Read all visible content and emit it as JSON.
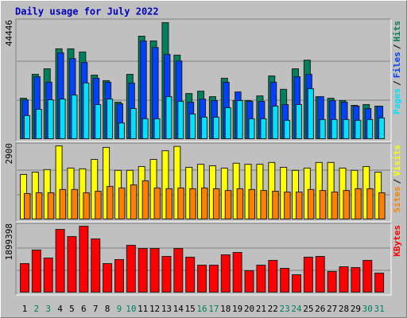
{
  "chart_data": [
    {
      "type": "bar",
      "title": "Daily usage for July 2022",
      "categories": [
        "1",
        "2",
        "3",
        "4",
        "5",
        "6",
        "7",
        "8",
        "9",
        "10",
        "11",
        "12",
        "13",
        "14",
        "15",
        "16",
        "17",
        "18",
        "19",
        "20",
        "21",
        "22",
        "23",
        "24",
        "25",
        "26",
        "27",
        "28",
        "29",
        "30",
        "31"
      ],
      "category_colors": [
        "#000000",
        "#00805c",
        "#00805c",
        "#000000",
        "#000000",
        "#000000",
        "#000000",
        "#000000",
        "#00805c",
        "#00805c",
        "#000000",
        "#000000",
        "#000000",
        "#000000",
        "#000000",
        "#00805c",
        "#00805c",
        "#000000",
        "#000000",
        "#000000",
        "#000000",
        "#000000",
        "#00805c",
        "#00805c",
        "#000000",
        "#000000",
        "#000000",
        "#000000",
        "#000000",
        "#00805c",
        "#00805c"
      ],
      "ylim": [
        0,
        44446
      ],
      "yticks": [
        44446
      ],
      "legend_separator": "/",
      "series": [
        {
          "name": "Hits",
          "color": "#00805c",
          "values": [
            15700,
            24800,
            26900,
            34500,
            34500,
            33300,
            24500,
            22400,
            14200,
            24800,
            39300,
            37500,
            44446,
            32100,
            17500,
            18400,
            16300,
            23300,
            14800,
            14800,
            16600,
            24200,
            19100,
            26900,
            30200,
            16300,
            15700,
            14800,
            13000,
            13300,
            12700
          ]
        },
        {
          "name": "Files",
          "color": "#0040ff",
          "values": [
            15100,
            23900,
            21800,
            33000,
            30800,
            29300,
            23300,
            21800,
            13600,
            21500,
            37500,
            35000,
            32400,
            29900,
            14200,
            15400,
            14800,
            21800,
            18100,
            14500,
            14500,
            21800,
            13300,
            23900,
            24800,
            16300,
            14800,
            14200,
            12700,
            11800,
            12700
          ]
        },
        {
          "name": "Pages",
          "color": "#00e0ff",
          "values": [
            9100,
            11500,
            15100,
            15400,
            16900,
            21500,
            13300,
            15400,
            6300,
            11800,
            7900,
            7900,
            16300,
            14500,
            9700,
            8500,
            8500,
            12100,
            14800,
            7900,
            7900,
            12700,
            7300,
            13300,
            19300,
            7600,
            7600,
            7600,
            7300,
            7600,
            8200
          ]
        }
      ]
    },
    {
      "type": "bar",
      "ylim": [
        0,
        2900
      ],
      "yticks": [
        2900
      ],
      "legend_separator": "/",
      "series": [
        {
          "name": "Visits",
          "color": "#ffff00",
          "values": [
            1780,
            1870,
            1970,
            2900,
            2030,
            2000,
            2370,
            2840,
            1940,
            1940,
            2090,
            2370,
            2710,
            2880,
            2060,
            2180,
            2120,
            2030,
            2220,
            2180,
            2180,
            2250,
            2060,
            1940,
            2030,
            2250,
            2250,
            2030,
            1940,
            2090,
            1870
          ]
        },
        {
          "name": "Sites",
          "color": "#ff8000",
          "values": [
            1030,
            1060,
            1060,
            1190,
            1190,
            1060,
            1120,
            1310,
            1250,
            1370,
            1530,
            1250,
            1220,
            1250,
            1220,
            1250,
            1220,
            1150,
            1220,
            1190,
            1150,
            1120,
            1090,
            1090,
            1190,
            1150,
            1090,
            1150,
            1220,
            1220,
            1060
          ]
        }
      ]
    },
    {
      "type": "bar",
      "ylim": [
        0,
        1899398
      ],
      "yticks": [
        1899398
      ],
      "series": [
        {
          "name": "KBytes",
          "color": "#ff0000",
          "values": [
            836000,
            1221000,
            995000,
            1809000,
            1605000,
            1899398,
            1538000,
            836000,
            950000,
            1357000,
            1266000,
            1266000,
            1040000,
            1266000,
            1018000,
            791000,
            791000,
            1085000,
            1153000,
            633000,
            791000,
            927000,
            701000,
            520000,
            1018000,
            1040000,
            611000,
            746000,
            724000,
            927000,
            565000
          ]
        }
      ]
    }
  ]
}
